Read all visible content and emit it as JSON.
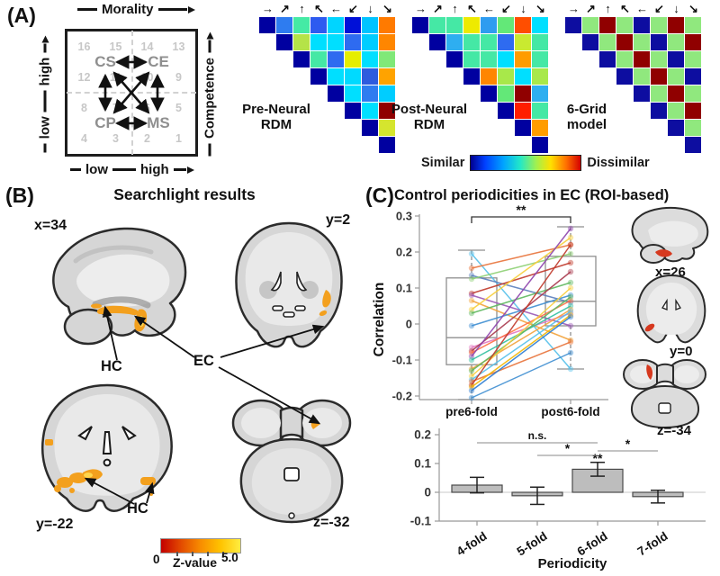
{
  "panelA": {
    "label": "(A)",
    "space": {
      "axis_top": "Morality",
      "axis_right": "Competence",
      "left_low": "low",
      "left_high": "high",
      "bottom_low": "low",
      "bottom_high": "high",
      "quadrants": {
        "top_left": "CS",
        "top_right": "CE",
        "bottom_left": "CP",
        "bottom_right": "MS"
      },
      "grid_numbers": [
        "16",
        "15",
        "14",
        "13",
        "12",
        "11",
        "10",
        "9",
        "8",
        "7",
        "6",
        "5",
        "4",
        "3",
        "2",
        "1"
      ]
    },
    "arrow_glyphs": [
      "→",
      "↗",
      "↑",
      "↖",
      "←",
      "↙",
      "↓",
      "↘"
    ],
    "matrices": [
      {
        "title_lines": [
          "Pre-Neural",
          "RDM"
        ],
        "rows": [
          [
            "#0000A0",
            "#2E7CF0",
            "#45EAA5",
            "#2E5BF0",
            "#00D5FF",
            "#0010D8",
            "#00C3FF",
            "#FF7A00"
          ],
          [
            "#0000A0",
            "#B5E348",
            "#00DFFF",
            "#00DFFF",
            "#2E6BF0",
            "#00CDFF",
            "#FF8600"
          ],
          [
            "#0000A0",
            "#45E8A5",
            "#2E6BF0",
            "#E6EE00",
            "#00DFFF",
            "#80E878"
          ],
          [
            "#0000A0",
            "#00DFFF",
            "#00DAFF",
            "#2E5BDE",
            "#FFA300"
          ],
          [
            "#0000A0",
            "#00DFFF",
            "#2E7CF0",
            "#00CDFF"
          ],
          [
            "#0000A0",
            "#00DFFF",
            "#900000"
          ],
          [
            "#0000A0",
            "#D5E52E"
          ],
          [
            "#0000A0"
          ]
        ]
      },
      {
        "title_lines": [
          "Post-Neural",
          "RDM"
        ],
        "rows": [
          [
            "#0000A0",
            "#45E8A5",
            "#45E8A5",
            "#EEEA00",
            "#2E9CF0",
            "#63E878",
            "#FF4E00",
            "#00DFFF"
          ],
          [
            "#0000A0",
            "#2EAEF0",
            "#45E8A5",
            "#45E8A5",
            "#2E6BF0",
            "#C9EA30",
            "#45E8A5"
          ],
          [
            "#0000A0",
            "#45E8A5",
            "#45E8A5",
            "#00DFFF",
            "#FF9C00",
            "#45E8A5"
          ],
          [
            "#0000A0",
            "#FF8600",
            "#A8E84A",
            "#00DFFF",
            "#A8E84A"
          ],
          [
            "#0000A0",
            "#63E878",
            "#900000",
            "#2EAEF0"
          ],
          [
            "#0000A0",
            "#FF1E00",
            "#45E8A5"
          ],
          [
            "#0000A0",
            "#FF9C00"
          ],
          [
            "#0000A0"
          ]
        ]
      },
      {
        "title_lines": [
          "6-Grid",
          "model"
        ],
        "rows": [
          [
            "#0D0DA0",
            "#90E87E",
            "#900000",
            "#90E87E",
            "#0D0DA0",
            "#90E87E",
            "#900000",
            "#90E87E"
          ],
          [
            "#0D0DA0",
            "#90E87E",
            "#900000",
            "#90E87E",
            "#0D0DA0",
            "#90E87E",
            "#900000"
          ],
          [
            "#0D0DA0",
            "#90E87E",
            "#900000",
            "#90E87E",
            "#0D0DA0",
            "#90E87E"
          ],
          [
            "#0D0DA0",
            "#90E87E",
            "#900000",
            "#90E87E",
            "#0D0DA0"
          ],
          [
            "#0D0DA0",
            "#90E87E",
            "#900000",
            "#90E87E"
          ],
          [
            "#0D0DA0",
            "#90E87E",
            "#900000"
          ],
          [
            "#0D0DA0",
            "#90E87E"
          ],
          [
            "#0D0DA0"
          ]
        ]
      }
    ],
    "similarity_scale": {
      "left": "Similar",
      "right": "Dissimilar"
    }
  },
  "panelB": {
    "label": "(B)",
    "title": "Searchlight results",
    "slices": {
      "sagittal": "x=34",
      "coronal_anterior": "y=2",
      "coronal_posterior": "y=-22",
      "axial": "z=-32"
    },
    "regions": {
      "hc_upper": "HC",
      "ec": "EC",
      "hc_lower": "HC"
    },
    "colorbar": {
      "min": "0",
      "label": "Z-value",
      "max": "5.0"
    },
    "activation_colors": {
      "low": "#c30000",
      "high": "#ffec40"
    }
  },
  "panelC": {
    "label": "(C)",
    "title": "Control periodicities in EC (ROI-based)",
    "paired_plot": {
      "ylabel": "Correlation",
      "yticks": [
        0.3,
        0.2,
        0.1,
        0,
        -0.1,
        -0.2
      ],
      "categories": [
        "pre6-fold",
        "post6-fold"
      ],
      "significance": "**",
      "boxes": [
        {
          "lo": -0.21,
          "q1": -0.113,
          "median": -0.038,
          "q3": 0.128,
          "hi": 0.205
        },
        {
          "lo": -0.125,
          "q1": -0.005,
          "median": 0.063,
          "q3": 0.188,
          "hi": 0.27
        }
      ],
      "pairs": [
        {
          "pre": 0.195,
          "post": -0.125,
          "color": "#56c0ea"
        },
        {
          "pre": 0.155,
          "post": 0.22,
          "color": "#e8743b"
        },
        {
          "pre": 0.135,
          "post": 0.06,
          "color": "#5b7fbd"
        },
        {
          "pre": 0.125,
          "post": 0.195,
          "color": "#8fd175"
        },
        {
          "pre": 0.085,
          "post": 0.17,
          "color": "#c0392b"
        },
        {
          "pre": 0.08,
          "post": -0.005,
          "color": "#9b59b6"
        },
        {
          "pre": 0.065,
          "post": -0.045,
          "color": "#f2a33c"
        },
        {
          "pre": 0.04,
          "post": 0.24,
          "color": "#f7cf3c"
        },
        {
          "pre": 0.03,
          "post": 0.115,
          "color": "#5fb85f"
        },
        {
          "pre": -0.005,
          "post": 0.08,
          "color": "#3f8fd2"
        },
        {
          "pre": -0.065,
          "post": 0.03,
          "color": "#e377c2"
        },
        {
          "pre": -0.075,
          "post": 0.145,
          "color": "#a93a4e"
        },
        {
          "pre": -0.08,
          "post": 0.065,
          "color": "#ff6f42"
        },
        {
          "pre": -0.09,
          "post": 0.265,
          "color": "#8e44ad"
        },
        {
          "pre": -0.1,
          "post": 0.05,
          "color": "#2fbfa0"
        },
        {
          "pre": -0.125,
          "post": 0.04,
          "color": "#f2a33c"
        },
        {
          "pre": -0.13,
          "post": 0.075,
          "color": "#5fb85f"
        },
        {
          "pre": -0.145,
          "post": 0.1,
          "color": "#f7cf3c"
        },
        {
          "pre": -0.155,
          "post": 0.035,
          "color": "#56c0ea"
        },
        {
          "pre": -0.16,
          "post": -0.05,
          "color": "#e8743b"
        },
        {
          "pre": -0.17,
          "post": 0.22,
          "color": "#c0392b"
        },
        {
          "pre": -0.175,
          "post": 0.025,
          "color": "#f2b705"
        },
        {
          "pre": -0.185,
          "post": 0.02,
          "color": "#2d7dd2"
        },
        {
          "pre": -0.205,
          "post": -0.08,
          "color": "#3f8fd2"
        }
      ]
    },
    "slices": {
      "sagittal": "x=26",
      "coronal": "y=0",
      "axial": "z=-34"
    },
    "bar_chart": {
      "yticks": [
        0.2,
        0.1,
        0,
        -0.1
      ],
      "categories": [
        "4-fold",
        "5-fold",
        "6-fold",
        "7-fold"
      ],
      "values": [
        0.025,
        -0.012,
        0.08,
        -0.015
      ],
      "errors": [
        0.027,
        0.03,
        0.024,
        0.022
      ],
      "bar_significance": "**",
      "brackets": [
        {
          "from": 0,
          "to": 2,
          "label": "n.s."
        },
        {
          "from": 1,
          "to": 2,
          "label": "*"
        },
        {
          "from": 2,
          "to": 3,
          "label": "*"
        }
      ],
      "xlabel": "Periodicity"
    }
  }
}
